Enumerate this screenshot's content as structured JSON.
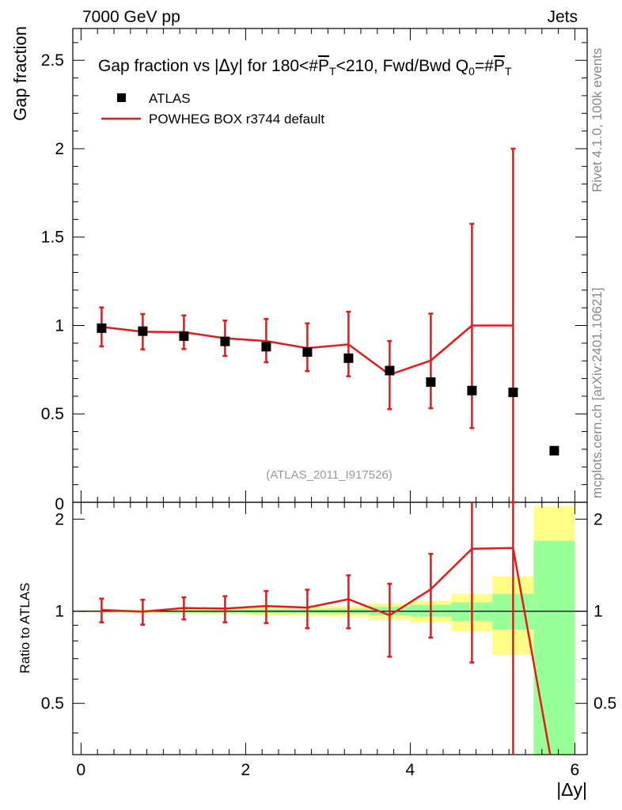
{
  "header": {
    "left": "7000 GeV pp",
    "right": "Jets"
  },
  "side_labels": {
    "rivet": "Rivet 4.1.0,  100k events",
    "mcplots": "mcplots.cern.ch [arXiv:2401.10621]"
  },
  "chart_data": [
    {
      "type": "scatter",
      "panel": "main",
      "title": "Gap fraction vs |Δy| for 180<#P̅T<210, Fwd/Bwd Q0=#P̅T",
      "title_parts": {
        "a": "Gap fraction vs |",
        "b": "Δ",
        "c": "y| for 180<#",
        "d": "P",
        "e": "T",
        "f": "<210, Fwd/Bwd Q",
        "g": "0",
        "h": "=#",
        "i": "P",
        "j": "T"
      },
      "ylabel": "Gap fraction",
      "xlabel": "|Δy|",
      "xlim": [
        -0.1,
        6.15
      ],
      "ylim": [
        0,
        2.68
      ],
      "y_ticks": [
        0.5,
        1,
        1.5,
        2,
        2.5
      ],
      "y_tick_labels": [
        "0.5",
        "1",
        "1.5",
        "2",
        "2.5"
      ],
      "y_zero_label": "0",
      "legend": [
        {
          "name": "ATLAS",
          "marker": "square",
          "color": "#000000"
        },
        {
          "name": "POWHEG BOX r3744 default",
          "marker": "line",
          "color": "#e31a1c"
        }
      ],
      "watermark": "(ATLAS_2011_I917526)",
      "series": [
        {
          "name": "ATLAS",
          "x": [
            0.25,
            0.75,
            1.25,
            1.75,
            2.25,
            2.75,
            3.25,
            3.75,
            4.25,
            4.75,
            5.25,
            5.75
          ],
          "y": [
            0.985,
            0.968,
            0.94,
            0.91,
            0.88,
            0.85,
            0.815,
            0.745,
            0.68,
            0.632,
            0.622,
            0.292
          ]
        },
        {
          "name": "POWHEG BOX r3744 default",
          "x": [
            0.25,
            0.75,
            1.25,
            1.75,
            2.25,
            2.75,
            3.25,
            3.75,
            4.25,
            4.75,
            5.25
          ],
          "y": [
            0.992,
            0.965,
            0.962,
            0.928,
            0.912,
            0.872,
            0.893,
            0.722,
            0.802,
            1.0,
            1.0
          ],
          "yerr_low": [
            0.11,
            0.1,
            0.095,
            0.1,
            0.12,
            0.13,
            0.18,
            0.195,
            0.27,
            0.58,
            1.0
          ],
          "yerr_high": [
            0.11,
            0.1,
            0.095,
            0.1,
            0.125,
            0.14,
            0.185,
            0.19,
            0.265,
            0.575,
            1.0
          ]
        }
      ]
    },
    {
      "type": "scatter",
      "panel": "ratio",
      "ylabel": "Ratio to ATLAS",
      "xlim": [
        -0.1,
        6.15
      ],
      "ylim": [
        0.34,
        2.27
      ],
      "y_ticks": [
        0.5,
        1,
        2
      ],
      "y_tick_labels": [
        "0.5",
        "1",
        "2"
      ],
      "x_ticks": [
        0,
        2,
        4,
        6
      ],
      "x_tick_labels": [
        "0",
        "2",
        "4",
        "6"
      ],
      "bands": [
        {
          "x0": 0.0,
          "x1": 0.5,
          "green": [
            0.995,
            1.005
          ],
          "yellow": [
            0.99,
            1.01
          ]
        },
        {
          "x0": 0.5,
          "x1": 1.0,
          "green": [
            0.993,
            1.007
          ],
          "yellow": [
            0.987,
            1.013
          ]
        },
        {
          "x0": 1.0,
          "x1": 1.5,
          "green": [
            0.99,
            1.01
          ],
          "yellow": [
            0.98,
            1.02
          ]
        },
        {
          "x0": 1.5,
          "x1": 2.0,
          "green": [
            0.988,
            1.012
          ],
          "yellow": [
            0.977,
            1.023
          ]
        },
        {
          "x0": 2.0,
          "x1": 2.5,
          "green": [
            0.985,
            1.015
          ],
          "yellow": [
            0.97,
            1.03
          ]
        },
        {
          "x0": 2.5,
          "x1": 3.0,
          "green": [
            0.983,
            1.017
          ],
          "yellow": [
            0.965,
            1.035
          ]
        },
        {
          "x0": 3.0,
          "x1": 3.5,
          "green": [
            0.98,
            1.02
          ],
          "yellow": [
            0.96,
            1.04
          ]
        },
        {
          "x0": 3.5,
          "x1": 4.0,
          "green": [
            0.97,
            1.035
          ],
          "yellow": [
            0.94,
            1.06
          ]
        },
        {
          "x0": 4.0,
          "x1": 4.5,
          "green": [
            0.96,
            1.05
          ],
          "yellow": [
            0.92,
            1.08
          ]
        },
        {
          "x0": 4.5,
          "x1": 5.0,
          "green": [
            0.93,
            1.07
          ],
          "yellow": [
            0.86,
            1.14
          ]
        },
        {
          "x0": 5.0,
          "x1": 5.5,
          "green": [
            0.87,
            1.14
          ],
          "yellow": [
            0.72,
            1.3
          ]
        },
        {
          "x0": 5.5,
          "x1": 6.0,
          "green": [
            0.34,
            1.7
          ],
          "yellow": [
            0.34,
            2.2
          ]
        }
      ],
      "series": [
        {
          "name": "POWHEG BOX r3744 default",
          "x": [
            0.25,
            0.75,
            1.25,
            1.75,
            2.25,
            2.75,
            3.25,
            3.75,
            4.25,
            4.75,
            5.25,
            5.7
          ],
          "y": [
            1.01,
            0.997,
            1.025,
            1.02,
            1.04,
            1.028,
            1.095,
            0.97,
            1.18,
            1.6,
            1.61,
            0.34
          ],
          "yerr_low": [
            0.09,
            0.093,
            0.085,
            0.1,
            0.125,
            0.148,
            0.215,
            0.26,
            0.36,
            0.92,
            1.61,
            0.0
          ],
          "yerr_high": [
            0.09,
            0.093,
            0.085,
            0.1,
            0.125,
            0.148,
            0.215,
            0.26,
            0.36,
            0.92,
            1.61,
            0.0
          ]
        }
      ]
    }
  ]
}
